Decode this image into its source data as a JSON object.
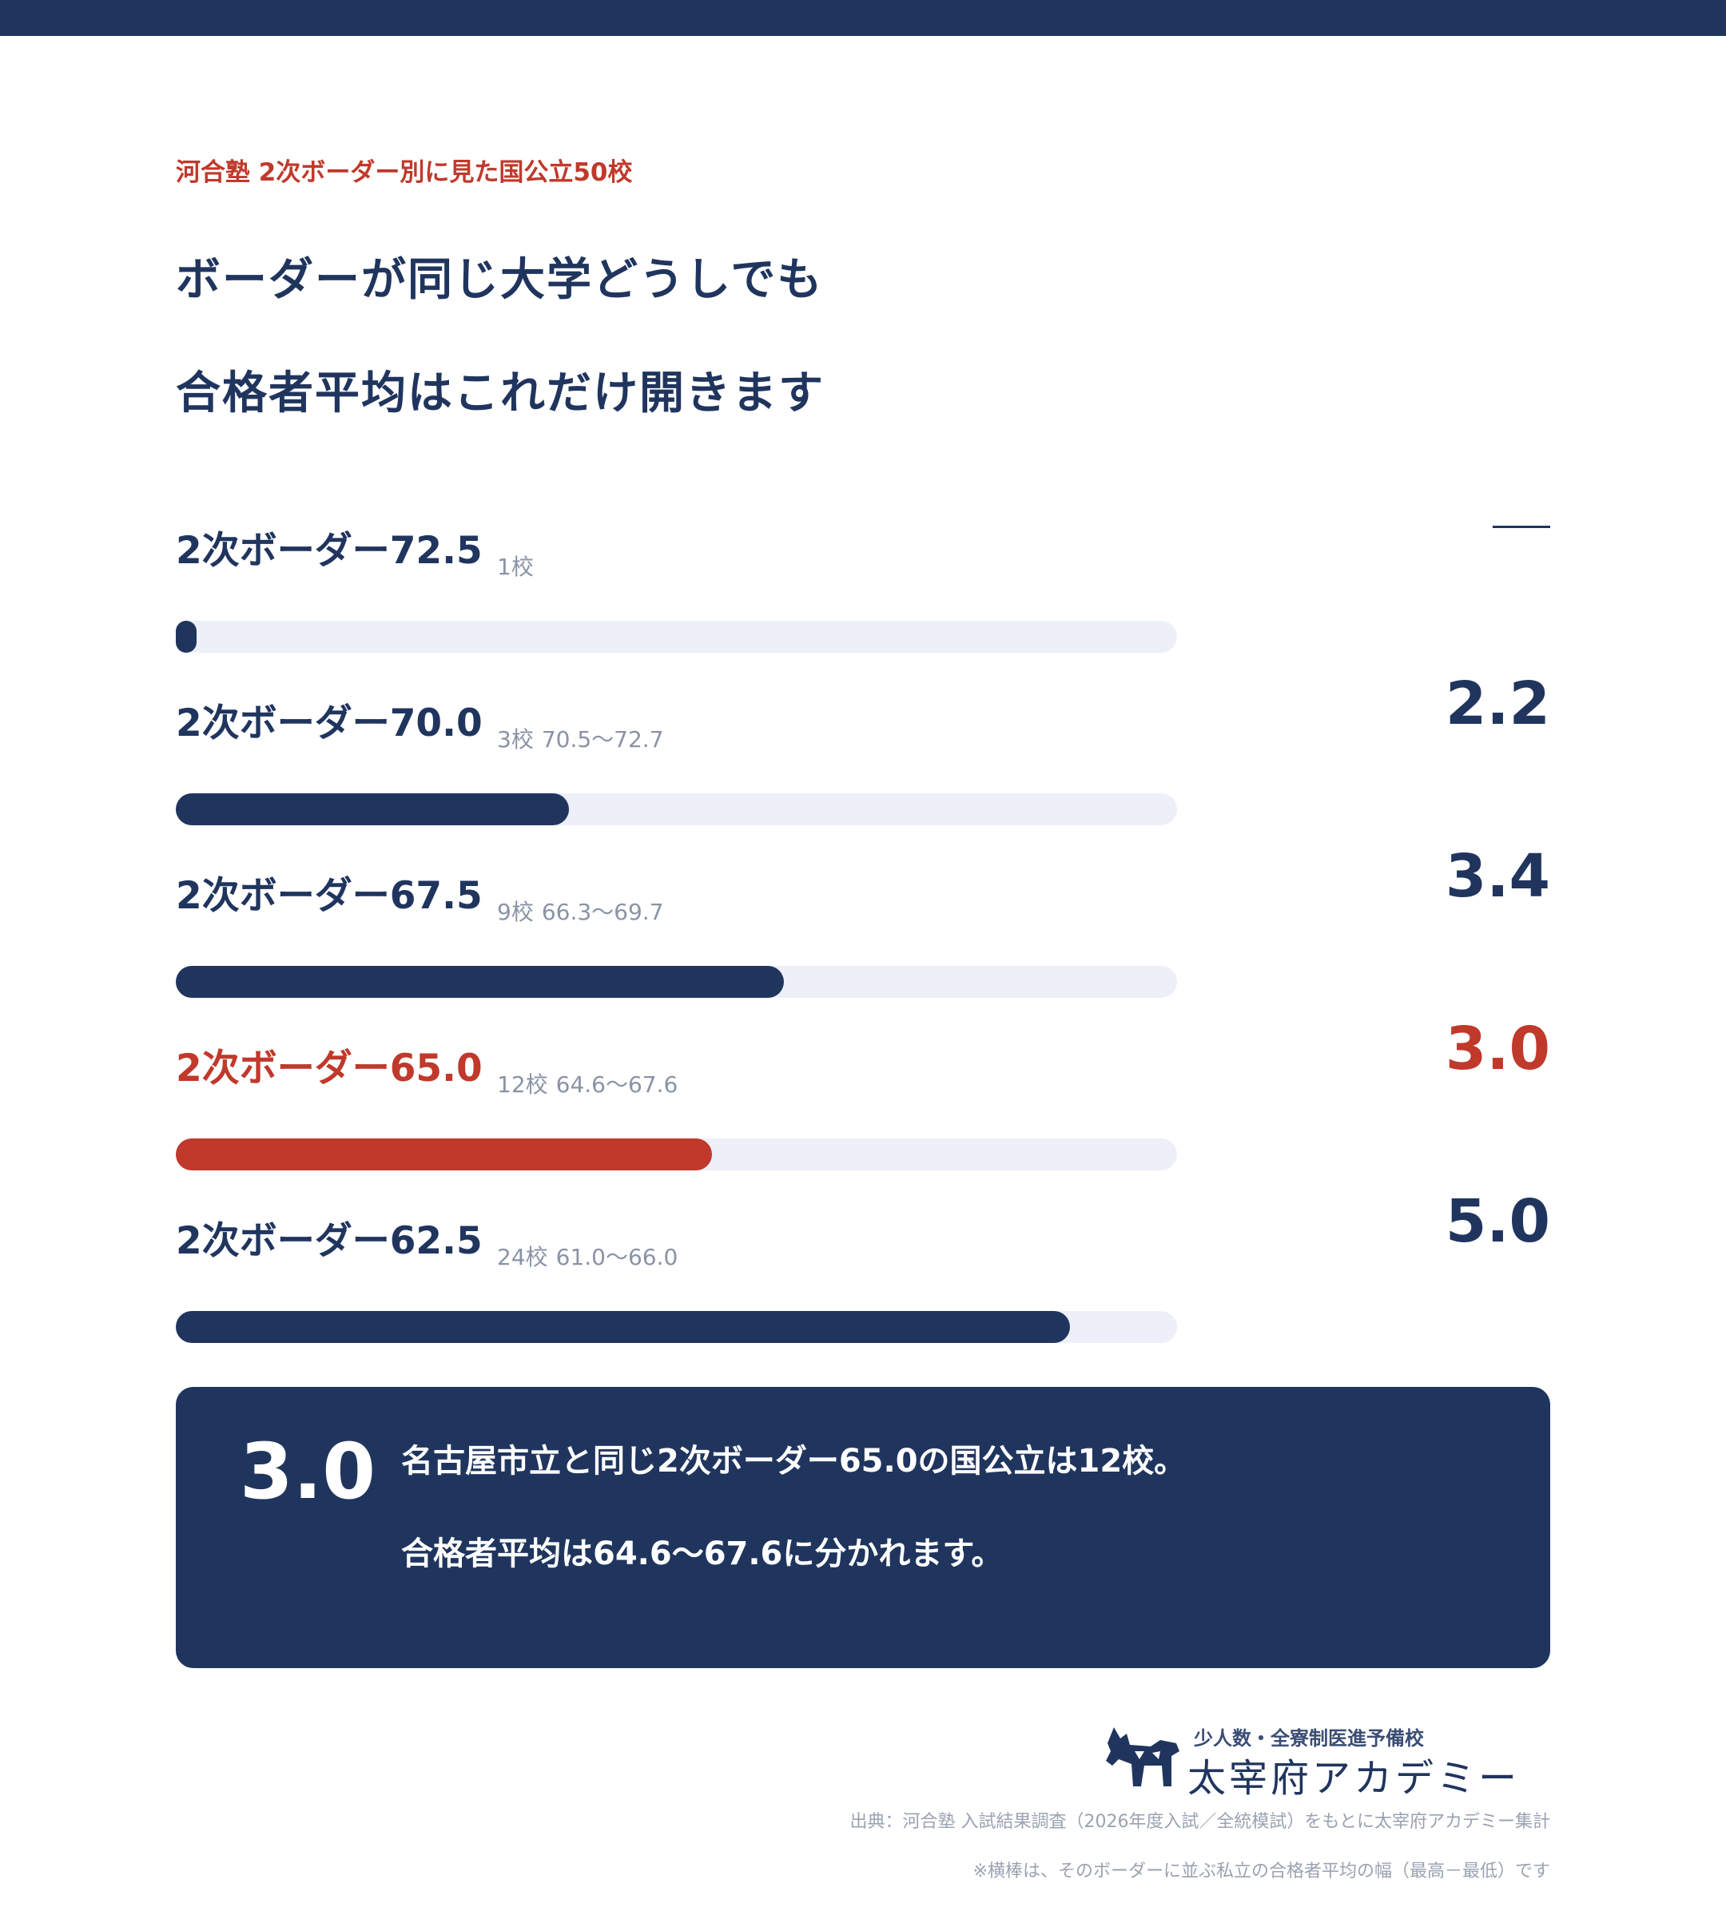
{
  "eyebrow": "河合塾 2次ボーダー別に見た国公立50校",
  "headline": {
    "line1": "ボーダーが同じ大学どうしでも",
    "line2": "合格者平均はこれだけ開きます"
  },
  "chart_data": {
    "type": "bar",
    "orientation": "horizontal",
    "categories": [
      "2次ボーダー72.5",
      "2次ボーダー70.0",
      "2次ボーダー67.5",
      "2次ボーダー65.0",
      "2次ボーダー62.5"
    ],
    "counts": [
      "1校",
      "3校",
      "9校",
      "12校",
      "24校"
    ],
    "ranges": [
      "",
      "70.5〜72.7",
      "66.3〜69.7",
      "64.6〜67.6",
      "61.0〜66.0"
    ],
    "values": [
      0,
      2.2,
      3.4,
      3.0,
      5.0
    ],
    "value_labels": [
      "—",
      "2.2",
      "3.4",
      "3.0",
      "5.0"
    ],
    "highlight_index": 3,
    "xlim": [
      0,
      5.6
    ],
    "colors": {
      "bar": "#20355e",
      "highlight": "#c0392b",
      "track": "#edf0f8"
    }
  },
  "callout": {
    "value": "3.0",
    "line1": "名古屋市立と同じ2次ボーダー65.0の国公立は12校。",
    "line2": "合格者平均は64.6〜67.6に分かれます。"
  },
  "logo": {
    "tagline": "少人数・全寮制医進予備校",
    "name": "太宰府アカデミー",
    "icon": "dog-mascot-icon"
  },
  "footnotes": {
    "source": "出典：河合塾 入試結果調査（2026年度入試／全統模試）をもとに太宰府アカデミー集計",
    "note": "※横棒は、そのボーダーに並ぶ私立の合格者平均の幅（最高－最低）です"
  }
}
